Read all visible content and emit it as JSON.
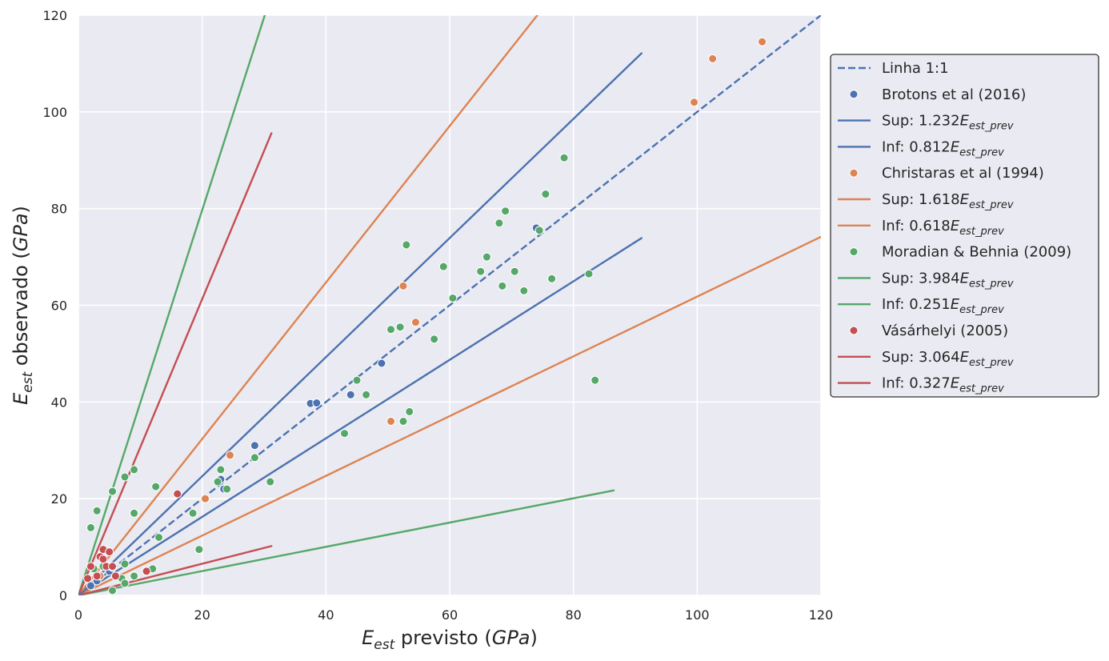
{
  "chart_data": {
    "type": "scatter",
    "title": "",
    "xlabel": {
      "base": "E",
      "sub": "est",
      "rest": " previsto (",
      "unit": "GPa",
      "close": ")"
    },
    "ylabel": {
      "base": "E",
      "sub": "est",
      "rest": " observado (",
      "unit": "GPa",
      "close": ")"
    },
    "xlim": [
      0,
      120
    ],
    "ylim": [
      0,
      120
    ],
    "xticks": [
      0,
      20,
      40,
      60,
      80,
      100,
      120
    ],
    "yticks": [
      0,
      20,
      40,
      60,
      80,
      100,
      120
    ],
    "grid": true,
    "legend_position": "right",
    "background": "#eaeaf2",
    "identity_line": {
      "label": "Linha 1:1",
      "color": "#4c72b0",
      "x": [
        0,
        120
      ],
      "y": [
        0,
        120
      ]
    },
    "series": [
      {
        "name": "Brotons et al (2016)",
        "color": "#4c72b0",
        "points": [
          [
            2,
            2
          ],
          [
            3,
            3
          ],
          [
            3.5,
            4
          ],
          [
            5,
            5
          ],
          [
            5.5,
            5.8
          ],
          [
            23.5,
            22
          ],
          [
            23,
            24
          ],
          [
            28.5,
            31
          ],
          [
            37.5,
            39.7
          ],
          [
            38.5,
            39.8
          ],
          [
            44,
            41.5
          ],
          [
            49,
            48
          ],
          [
            74,
            76
          ]
        ],
        "lines": [
          {
            "label_prefix": "Sup: 1.232",
            "coef": 1.232,
            "x_max": 91
          },
          {
            "label_prefix": "Inf: 0.812",
            "coef": 0.812,
            "x_max": 91
          }
        ]
      },
      {
        "name": "Christaras et al (1994)",
        "color": "#dd8452",
        "points": [
          [
            3.5,
            4
          ],
          [
            4.5,
            6
          ],
          [
            6,
            4
          ],
          [
            20.5,
            20
          ],
          [
            24.5,
            29
          ],
          [
            50.5,
            36
          ],
          [
            52.5,
            64
          ],
          [
            54.5,
            56.5
          ],
          [
            99.5,
            102
          ],
          [
            102.5,
            111
          ],
          [
            110.5,
            114.5
          ]
        ],
        "lines": [
          {
            "label_prefix": "Sup: 1.618",
            "coef": 1.618,
            "x_max": 120
          },
          {
            "label_prefix": "Inf: 0.618",
            "coef": 0.618,
            "x_max": 120
          }
        ]
      },
      {
        "name": "Moradian & Behnia (2009)",
        "color": "#55a868",
        "points": [
          [
            2,
            14
          ],
          [
            2.5,
            5.5
          ],
          [
            3,
            17.5
          ],
          [
            4,
            6
          ],
          [
            5.5,
            1
          ],
          [
            5.5,
            21.5
          ],
          [
            7,
            3.5
          ],
          [
            7.5,
            24.5
          ],
          [
            7.5,
            6.5
          ],
          [
            7.5,
            2.5
          ],
          [
            9,
            4
          ],
          [
            9,
            17
          ],
          [
            9,
            26
          ],
          [
            12,
            5.5
          ],
          [
            12.5,
            22.5
          ],
          [
            13,
            12
          ],
          [
            18.5,
            17
          ],
          [
            19.5,
            9.5
          ],
          [
            22.5,
            23.5
          ],
          [
            23,
            26
          ],
          [
            24,
            22
          ],
          [
            28.5,
            28.5
          ],
          [
            31,
            23.5
          ],
          [
            43,
            33.5
          ],
          [
            45,
            44.5
          ],
          [
            46.5,
            41.5
          ],
          [
            50.5,
            55
          ],
          [
            52,
            55.5
          ],
          [
            52.5,
            36
          ],
          [
            53,
            72.5
          ],
          [
            53.5,
            38
          ],
          [
            57.5,
            53
          ],
          [
            59,
            68
          ],
          [
            60.5,
            61.5
          ],
          [
            65,
            67
          ],
          [
            66,
            70
          ],
          [
            68,
            77
          ],
          [
            68.5,
            64
          ],
          [
            69,
            79.5
          ],
          [
            70.5,
            67
          ],
          [
            72,
            63
          ],
          [
            74.5,
            75.5
          ],
          [
            75.5,
            83
          ],
          [
            76.5,
            65.5
          ],
          [
            78.5,
            90.5
          ],
          [
            82.5,
            66.5
          ],
          [
            83.5,
            44.5
          ]
        ],
        "lines": [
          {
            "label_prefix": "Sup: 3.984",
            "coef": 3.984,
            "x_max": 86.5
          },
          {
            "label_prefix": "Inf: 0.251",
            "coef": 0.251,
            "x_max": 86.5
          }
        ]
      },
      {
        "name": "Vásárhelyi (2005)",
        "color": "#c44e52",
        "points": [
          [
            1.5,
            3.5
          ],
          [
            2,
            6
          ],
          [
            3,
            4
          ],
          [
            3.5,
            8
          ],
          [
            4,
            9.5
          ],
          [
            4,
            7.5
          ],
          [
            4.5,
            6
          ],
          [
            5,
            9
          ],
          [
            5.5,
            6
          ],
          [
            6,
            4
          ],
          [
            11,
            5
          ],
          [
            16,
            21
          ]
        ],
        "lines": [
          {
            "label_prefix": "Sup: 3.064",
            "coef": 3.064,
            "x_max": 31.2
          },
          {
            "label_prefix": "Inf: 0.327",
            "coef": 0.327,
            "x_max": 31.2
          }
        ]
      }
    ],
    "line_label_var": {
      "base": "E",
      "sub": "est_prev"
    }
  }
}
